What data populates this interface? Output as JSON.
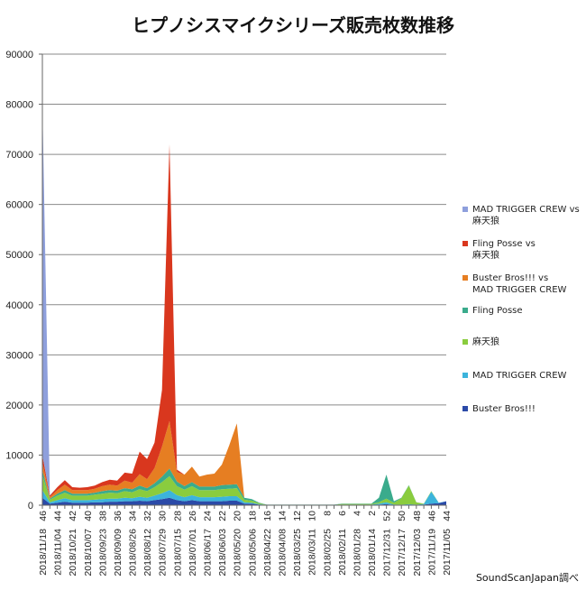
{
  "chart_data": {
    "type": "area",
    "stacked": true,
    "title": "ヒプノシスマイクシリーズ販売枚数推移",
    "xlabel": "",
    "ylabel": "",
    "ylim": [
      0,
      90000
    ],
    "yticks": [
      0,
      10000,
      20000,
      30000,
      40000,
      50000,
      60000,
      70000,
      80000,
      90000
    ],
    "grid": true,
    "legend_position": "right",
    "x_labels": [
      {
        "date": "2018/11/18",
        "week": "46"
      },
      {
        "date": "2018/11/04",
        "week": "44"
      },
      {
        "date": "2018/10/21",
        "week": "42"
      },
      {
        "date": "2018/10/07",
        "week": "40"
      },
      {
        "date": "2018/09/23",
        "week": "38"
      },
      {
        "date": "2018/09/09",
        "week": "36"
      },
      {
        "date": "2018/08/26",
        "week": "34"
      },
      {
        "date": "2018/08/12",
        "week": "32"
      },
      {
        "date": "2018/07/29",
        "week": "30"
      },
      {
        "date": "2018/07/15",
        "week": "28"
      },
      {
        "date": "2018/07/01",
        "week": "26"
      },
      {
        "date": "2018/06/17",
        "week": "24"
      },
      {
        "date": "2018/06/03",
        "week": "22"
      },
      {
        "date": "2018/05/20",
        "week": "20"
      },
      {
        "date": "2018/05/06",
        "week": "18"
      },
      {
        "date": "2018/04/22",
        "week": "16"
      },
      {
        "date": "2018/04/08",
        "week": "14"
      },
      {
        "date": "2018/03/25",
        "week": "12"
      },
      {
        "date": "2018/03/11",
        "week": "10"
      },
      {
        "date": "2018/02/25",
        "week": "8"
      },
      {
        "date": "2018/02/11",
        "week": "6"
      },
      {
        "date": "2018/01/28",
        "week": "4"
      },
      {
        "date": "2018/01/14",
        "week": "2"
      },
      {
        "date": "2017/12/31",
        "week": "52"
      },
      {
        "date": "2017/12/17",
        "week": "50"
      },
      {
        "date": "2017/12/03",
        "week": "48"
      },
      {
        "date": "2017/11/19",
        "week": "46"
      },
      {
        "date": "2017/11/05",
        "week": "44"
      }
    ],
    "n_points": 55,
    "series": [
      {
        "name": "Buster Bros!!!",
        "color": "#2b4aa8",
        "values": [
          1500,
          300,
          500,
          700,
          500,
          500,
          500,
          600,
          600,
          700,
          700,
          800,
          800,
          900,
          800,
          1000,
          1200,
          1500,
          1000,
          800,
          1000,
          800,
          800,
          800,
          800,
          900,
          900,
          300,
          300,
          100,
          20,
          20,
          20,
          20,
          20,
          20,
          20,
          20,
          20,
          20,
          50,
          50,
          50,
          50,
          50,
          100,
          200,
          50,
          50,
          100,
          50,
          100,
          300,
          400,
          800
        ]
      },
      {
        "name": "MAD TRIGGER CREW",
        "color": "#3cb4dc",
        "values": [
          1500,
          300,
          500,
          700,
          500,
          500,
          500,
          500,
          600,
          600,
          600,
          700,
          600,
          800,
          700,
          900,
          1200,
          1500,
          1000,
          800,
          1000,
          800,
          800,
          800,
          900,
          900,
          900,
          300,
          200,
          100,
          20,
          20,
          20,
          20,
          20,
          20,
          20,
          20,
          20,
          20,
          50,
          50,
          50,
          50,
          50,
          200,
          400,
          100,
          50,
          100,
          50,
          150,
          2400,
          100,
          0
        ]
      },
      {
        "name": "麻天狼",
        "color": "#8acc3e",
        "values": [
          3000,
          500,
          900,
          1100,
          900,
          900,
          900,
          1000,
          1100,
          1200,
          1100,
          1300,
          1200,
          1500,
          1300,
          1700,
          2200,
          2800,
          1800,
          1500,
          1800,
          1400,
          1400,
          1400,
          1500,
          1500,
          1600,
          500,
          400,
          200,
          40,
          40,
          40,
          40,
          40,
          40,
          40,
          40,
          40,
          40,
          150,
          150,
          150,
          150,
          150,
          300,
          700,
          350,
          1300,
          3700,
          450,
          50,
          100,
          0,
          0
        ]
      },
      {
        "name": "Fling Posse",
        "color": "#3aab8c",
        "values": [
          1000,
          200,
          400,
          500,
          400,
          400,
          400,
          400,
          500,
          500,
          500,
          600,
          600,
          700,
          600,
          800,
          1100,
          1500,
          900,
          700,
          800,
          700,
          700,
          700,
          800,
          800,
          800,
          400,
          300,
          100,
          20,
          20,
          20,
          20,
          20,
          20,
          20,
          20,
          20,
          20,
          50,
          50,
          50,
          50,
          50,
          900,
          4800,
          300,
          100,
          100,
          50,
          0,
          0,
          0,
          0
        ]
      },
      {
        "name": "Buster Bros!!! vs MAD TRIGGER CREW",
        "color": "#e67e22",
        "values": [
          1500,
          300,
          700,
          1100,
          700,
          700,
          700,
          800,
          1000,
          1100,
          1000,
          1500,
          1300,
          2300,
          1800,
          3000,
          6000,
          9500,
          1900,
          2300,
          3100,
          2000,
          2400,
          2600,
          4100,
          7900,
          12100,
          0,
          0,
          0,
          0,
          0,
          0,
          0,
          0,
          0,
          0,
          0,
          0,
          0,
          0,
          0,
          0,
          0,
          0,
          0,
          0,
          0,
          0,
          0,
          0,
          0,
          0,
          0,
          0
        ]
      },
      {
        "name": "Fling Posse vs 麻天狼",
        "color": "#d9371e",
        "values": [
          1500,
          300,
          600,
          900,
          600,
          500,
          600,
          600,
          800,
          1000,
          1000,
          1600,
          1800,
          4500,
          4000,
          5100,
          11300,
          55200,
          500,
          0,
          0,
          0,
          0,
          0,
          0,
          0,
          0,
          0,
          0,
          0,
          0,
          0,
          0,
          0,
          0,
          0,
          0,
          0,
          0,
          0,
          0,
          0,
          0,
          0,
          0,
          0,
          0,
          0,
          0,
          0,
          0,
          0,
          0,
          0,
          0
        ]
      },
      {
        "name": "MAD TRIGGER CREW vs 麻天狼",
        "color": "#8e9fdc",
        "values": [
          70000,
          100,
          0,
          0,
          0,
          0,
          0,
          0,
          0,
          0,
          0,
          0,
          0,
          0,
          0,
          0,
          0,
          0,
          0,
          0,
          0,
          0,
          0,
          0,
          0,
          0,
          0,
          0,
          0,
          0,
          0,
          0,
          0,
          0,
          0,
          0,
          0,
          0,
          0,
          0,
          0,
          0,
          0,
          0,
          0,
          0,
          0,
          0,
          0,
          0,
          0,
          0,
          0,
          0,
          0
        ]
      }
    ],
    "legend_labels": [
      {
        "line1": "MAD TRIGGER CREW vs",
        "line2": "麻天狼"
      },
      {
        "line1": "Fling Posse vs",
        "line2": "麻天狼"
      },
      {
        "line1": "Buster Bros!!! vs",
        "line2": "MAD TRIGGER CREW"
      },
      {
        "line1": "Fling Posse",
        "line2": ""
      },
      {
        "line1": "麻天狼",
        "line2": ""
      },
      {
        "line1": "MAD TRIGGER CREW",
        "line2": ""
      },
      {
        "line1": "Buster Bros!!!",
        "line2": ""
      }
    ],
    "source": "SoundScanJapan調べ"
  }
}
